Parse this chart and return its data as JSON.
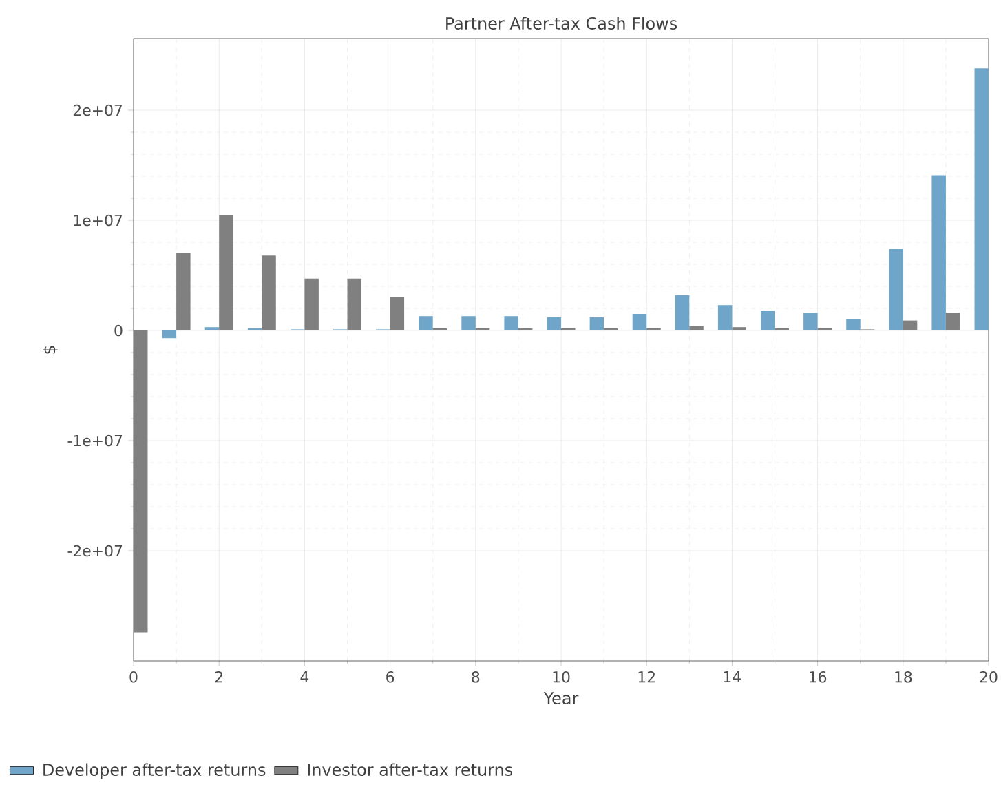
{
  "chart_data": {
    "type": "bar",
    "title": "Partner After-tax Cash Flows",
    "xlabel": "Year",
    "ylabel": "$",
    "x": [
      0,
      1,
      2,
      3,
      4,
      5,
      6,
      7,
      8,
      9,
      10,
      11,
      12,
      13,
      14,
      15,
      16,
      17,
      18,
      19,
      20
    ],
    "series": [
      {
        "name": "Developer after-tax returns",
        "color": "#6fa5c8",
        "values": [
          null,
          -700000,
          300000,
          200000,
          100000,
          100000,
          100000,
          1300000,
          1300000,
          1300000,
          1200000,
          1200000,
          1500000,
          3200000,
          2300000,
          1800000,
          1600000,
          1000000,
          7400000,
          14100000,
          23800000
        ]
      },
      {
        "name": "Investor after-tax returns",
        "color": "#808080",
        "values": [
          -27400000,
          7000000,
          10500000,
          6800000,
          4700000,
          4700000,
          3000000,
          200000,
          200000,
          200000,
          200000,
          200000,
          200000,
          400000,
          300000,
          200000,
          200000,
          100000,
          900000,
          1600000,
          null
        ]
      }
    ],
    "xlim": [
      0,
      20
    ],
    "ylim": [
      -30000000,
      26500000
    ],
    "xticks": [
      0,
      2,
      4,
      6,
      8,
      10,
      12,
      14,
      16,
      18,
      20
    ],
    "yticks": [
      {
        "value": -20000000,
        "label": "-2e+07"
      },
      {
        "value": -10000000,
        "label": "-1e+07"
      },
      0,
      {
        "value": 10000000,
        "label": "1e+07"
      },
      {
        "value": 20000000,
        "label": "2e+07"
      }
    ],
    "grid": true,
    "legend": "bottom left"
  }
}
